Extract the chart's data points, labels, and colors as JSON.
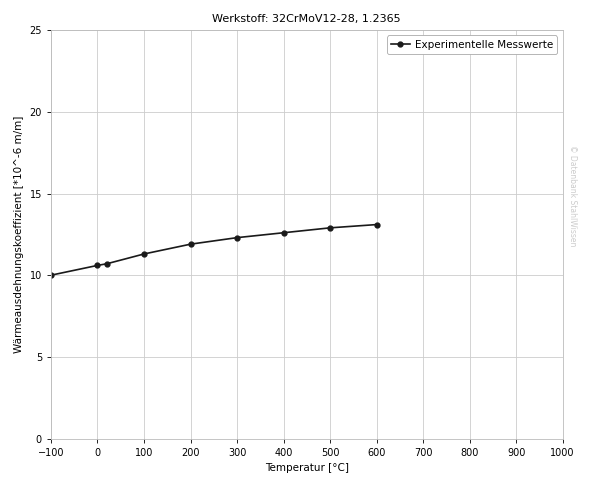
{
  "title": "Werkstoff: 32CrMoV12-28, 1.2365",
  "xlabel": "Temperatur [°C]",
  "ylabel": "Wärmeausdehnungskoeffizient [*10^-6 m/m]",
  "legend_label": "Experimentelle Messwerte",
  "watermark": "© Datenbank StahlWissen",
  "x_data": [
    -100,
    0,
    20,
    100,
    200,
    300,
    400,
    500,
    600
  ],
  "y_data": [
    10.0,
    10.6,
    10.7,
    11.3,
    11.9,
    12.3,
    12.6,
    12.9,
    13.1
  ],
  "xlim": [
    -100,
    1000
  ],
  "ylim": [
    0,
    25
  ],
  "xticks": [
    -100,
    0,
    100,
    200,
    300,
    400,
    500,
    600,
    700,
    800,
    900,
    1000
  ],
  "yticks": [
    0,
    5,
    10,
    15,
    20,
    25
  ],
  "line_color": "#1a1a1a",
  "marker": "o",
  "marker_size": 3.5,
  "line_width": 1.2,
  "bg_color": "#ffffff",
  "grid_color": "#cccccc",
  "title_fontsize": 8,
  "label_fontsize": 7.5,
  "tick_fontsize": 7,
  "legend_fontsize": 7.5,
  "watermark_fontsize": 5.5,
  "watermark_color": "#cccccc"
}
